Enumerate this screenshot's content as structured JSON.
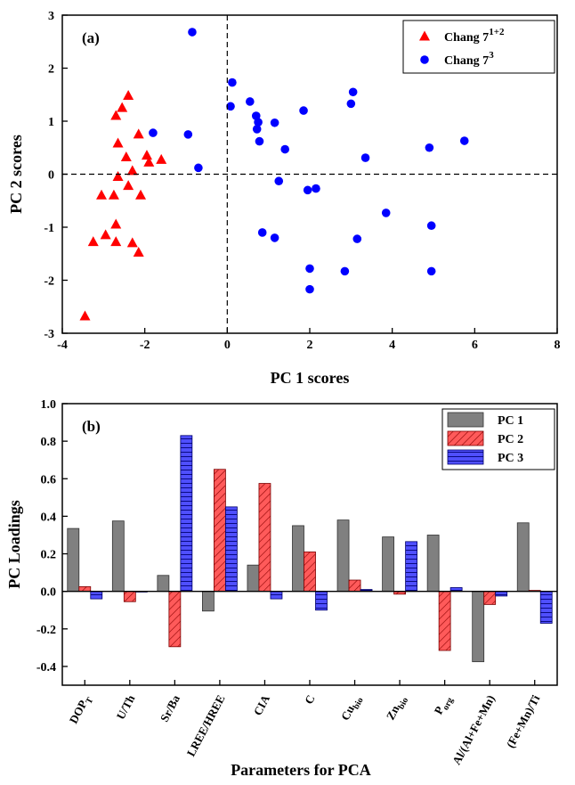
{
  "chart_data": [
    {
      "type": "scatter",
      "panel_label": "(a)",
      "xlabel": "PC 1 scores",
      "ylabel": "PC 2 scores",
      "xlim": [
        -4,
        8
      ],
      "ylim": [
        -3,
        3
      ],
      "xticks": [
        -4,
        -2,
        0,
        2,
        4,
        6,
        8
      ],
      "yticks": [
        -3,
        -2,
        -1,
        0,
        1,
        2,
        3
      ],
      "reference_lines": {
        "x": 0,
        "y": 0,
        "style": "dashed"
      },
      "legend_position": "top-right",
      "series": [
        {
          "name_base": "Chang 7",
          "name_sup": "1+2",
          "marker": "triangle",
          "color": "#ff0000",
          "points": [
            [
              -2.4,
              1.48
            ],
            [
              -2.55,
              1.25
            ],
            [
              -2.7,
              1.1
            ],
            [
              -2.15,
              0.75
            ],
            [
              -2.65,
              0.58
            ],
            [
              -1.95,
              0.35
            ],
            [
              -2.45,
              0.32
            ],
            [
              -1.6,
              0.27
            ],
            [
              -1.9,
              0.22
            ],
            [
              -2.3,
              0.06
            ],
            [
              -2.65,
              -0.05
            ],
            [
              -2.4,
              -0.22
            ],
            [
              -3.05,
              -0.4
            ],
            [
              -2.75,
              -0.4
            ],
            [
              -2.1,
              -0.4
            ],
            [
              -2.7,
              -0.95
            ],
            [
              -2.95,
              -1.15
            ],
            [
              -3.25,
              -1.28
            ],
            [
              -2.7,
              -1.28
            ],
            [
              -2.3,
              -1.3
            ],
            [
              -2.15,
              -1.48
            ],
            [
              -3.45,
              -2.68
            ]
          ]
        },
        {
          "name_base": "Chang 7",
          "name_sup": "3",
          "marker": "circle",
          "color": "#0000ff",
          "points": [
            [
              -0.85,
              2.68
            ],
            [
              0.12,
              1.73
            ],
            [
              3.05,
              1.55
            ],
            [
              0.55,
              1.37
            ],
            [
              3.0,
              1.33
            ],
            [
              0.08,
              1.28
            ],
            [
              1.85,
              1.2
            ],
            [
              0.7,
              1.1
            ],
            [
              0.75,
              0.98
            ],
            [
              1.15,
              0.97
            ],
            [
              0.72,
              0.85
            ],
            [
              -1.8,
              0.78
            ],
            [
              -0.95,
              0.75
            ],
            [
              5.75,
              0.63
            ],
            [
              0.78,
              0.62
            ],
            [
              4.9,
              0.5
            ],
            [
              1.4,
              0.47
            ],
            [
              3.35,
              0.31
            ],
            [
              -0.7,
              0.12
            ],
            [
              1.25,
              -0.13
            ],
            [
              2.15,
              -0.27
            ],
            [
              1.95,
              -0.3
            ],
            [
              3.85,
              -0.73
            ],
            [
              4.95,
              -0.97
            ],
            [
              0.85,
              -1.1
            ],
            [
              1.15,
              -1.2
            ],
            [
              3.15,
              -1.22
            ],
            [
              2.0,
              -1.78
            ],
            [
              2.85,
              -1.83
            ],
            [
              4.95,
              -1.83
            ],
            [
              2.0,
              -2.17
            ]
          ]
        }
      ]
    },
    {
      "type": "bar",
      "panel_label": "(b)",
      "xlabel": "Parameters for PCA",
      "ylabel": "PC Loadings",
      "ylim": [
        -0.5,
        1.0
      ],
      "yticks": [
        "-0.4",
        "-0.2",
        "0.0",
        "0.2",
        "0.4",
        "0.6",
        "0.8",
        "1.0"
      ],
      "legend_position": "top-right",
      "categories": [
        {
          "base": "DOP",
          "sub": "T"
        },
        {
          "base": "U/Th",
          "sub": ""
        },
        {
          "base": "Sr/Ba",
          "sub": ""
        },
        {
          "base": "LREE/HREE",
          "sub": ""
        },
        {
          "base": "CIA",
          "sub": ""
        },
        {
          "base": "C",
          "sub": ""
        },
        {
          "base": "Cu",
          "sub": "bio"
        },
        {
          "base": "Zn",
          "sub": "bio"
        },
        {
          "base": "P",
          "sub": "org"
        },
        {
          "base": "Al/(Al+Fe+Mn)",
          "sub": ""
        },
        {
          "base": "(Fe+Mn)/Ti",
          "sub": ""
        }
      ],
      "series": [
        {
          "name": "PC 1",
          "color": "#808080",
          "pattern": "solid",
          "values": [
            0.335,
            0.375,
            0.085,
            -0.105,
            0.14,
            0.35,
            0.38,
            0.29,
            0.3,
            -0.375,
            0.365
          ]
        },
        {
          "name": "PC 2",
          "color": "#ff5a5a",
          "pattern": "diagonal-hatch",
          "values": [
            0.025,
            -0.055,
            -0.295,
            0.65,
            0.575,
            0.21,
            0.06,
            -0.015,
            -0.315,
            -0.07,
            0.005
          ]
        },
        {
          "name": "PC 3",
          "color": "#4f4fff",
          "pattern": "horizontal-hatch",
          "values": [
            -0.04,
            0.0,
            0.83,
            0.45,
            -0.04,
            -0.1,
            0.01,
            0.265,
            0.02,
            -0.025,
            -0.17
          ]
        }
      ]
    }
  ]
}
